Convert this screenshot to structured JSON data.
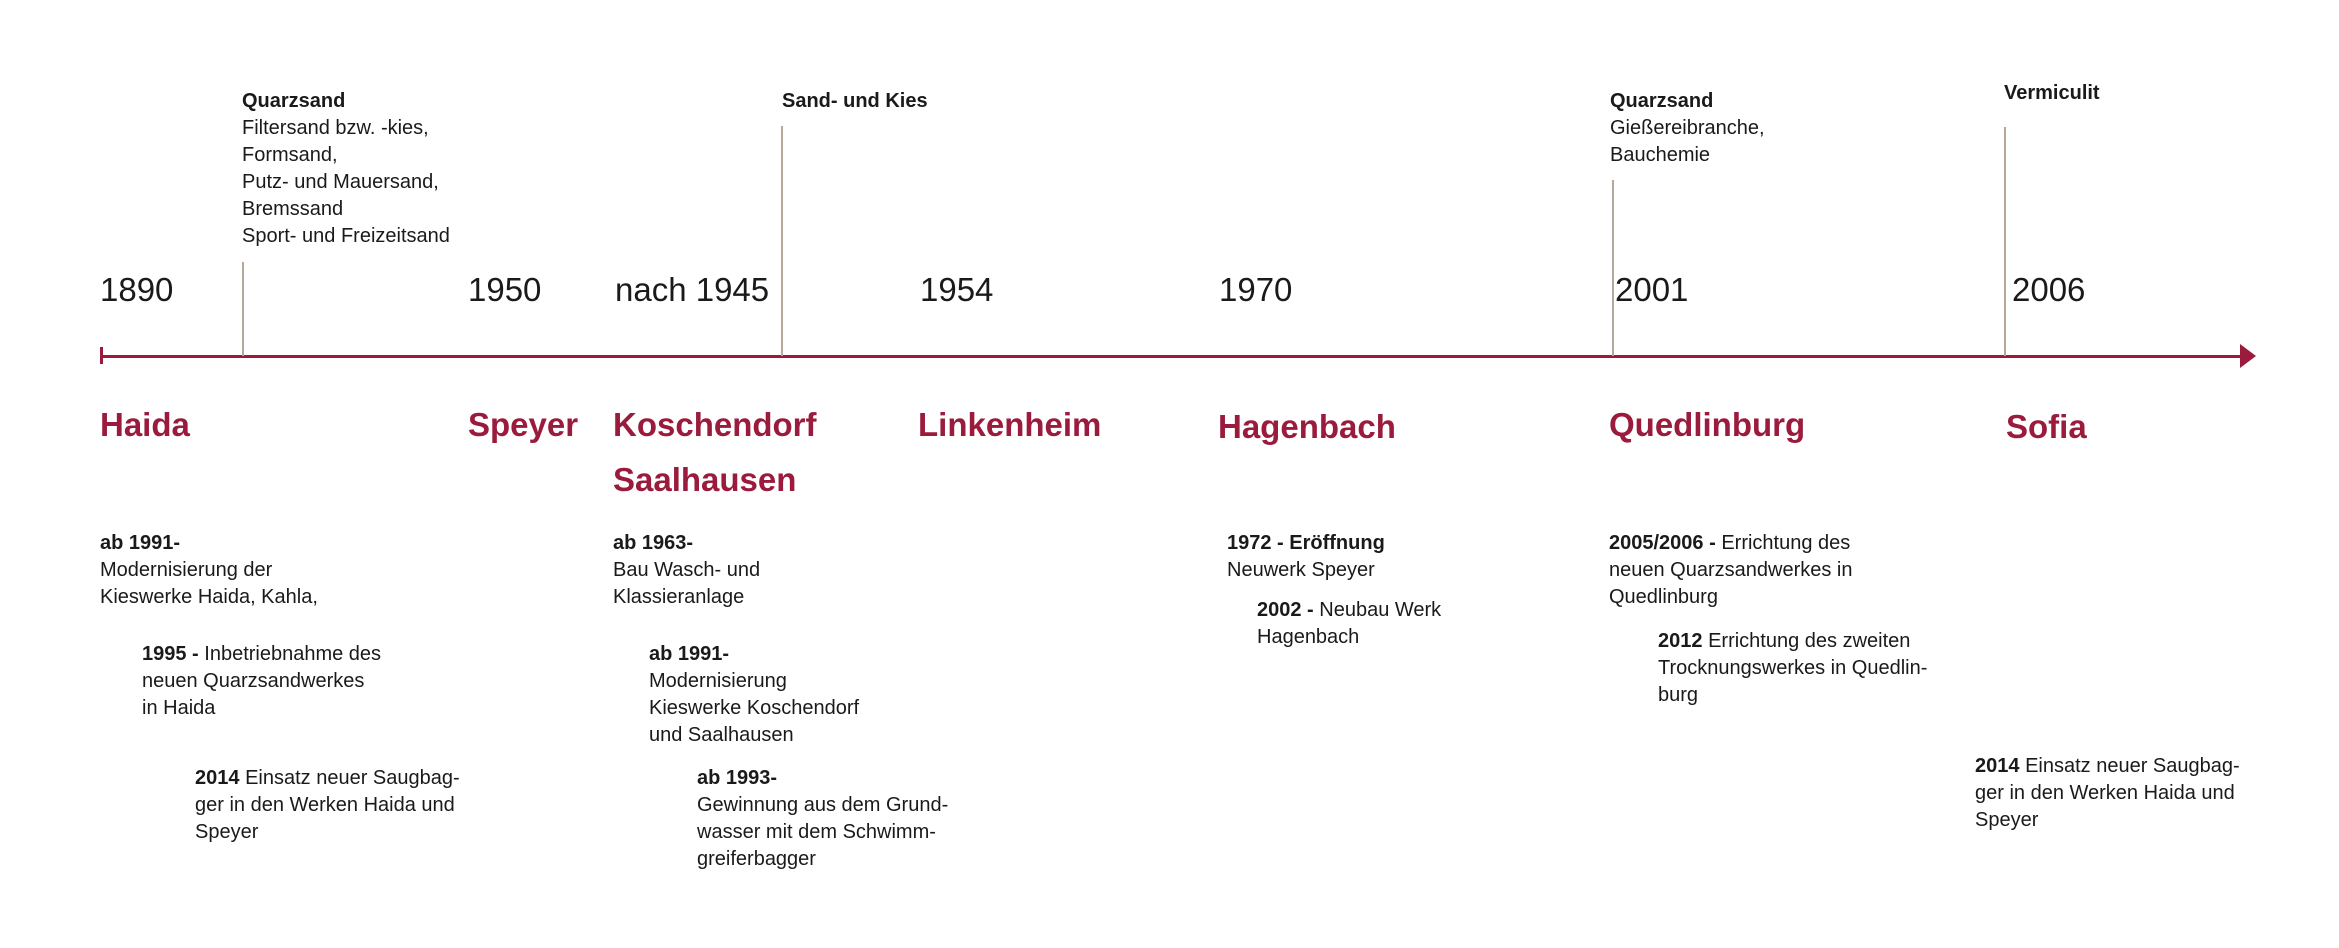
{
  "timeline": {
    "years": [
      "1890",
      "1950",
      "nach 1945",
      "1954",
      "1970",
      "2001",
      "2006"
    ],
    "places": [
      "Haida",
      "Speyer",
      "Koschendorf",
      "Saalhausen",
      "Linkenheim",
      "Hagenbach",
      "Quedlinburg",
      "Sofia"
    ],
    "materials": [
      {
        "title": "Quarzsand",
        "lines": [
          "Filtersand bzw. -kies,",
          "Formsand,",
          "Putz- und Mauersand,",
          "Bremssand",
          "Sport- und Freizeitsand"
        ]
      },
      {
        "title": "Sand- und Kies",
        "lines": []
      },
      {
        "title": "Quarzsand",
        "lines": [
          "Gießereibranche,",
          "Bauchemie"
        ]
      },
      {
        "title": "Vermiculit",
        "lines": []
      }
    ],
    "events": [
      {
        "bold": "ab 1991-",
        "text": [
          "Modernisierung der",
          "Kieswerke Haida, Kahla,"
        ]
      },
      {
        "bold": "1995 - ",
        "text": [
          "Inbetriebnahme des",
          "neuen Quarzsandwerkes",
          "in Haida"
        ]
      },
      {
        "bold": "2014 ",
        "text": [
          "Einsatz neuer Saugbag-",
          "ger in den Werken Haida und",
          "Speyer"
        ]
      },
      {
        "bold": "ab 1963-",
        "text": [
          "Bau Wasch- und",
          "Klassieranlage"
        ]
      },
      {
        "bold": "ab 1991-",
        "text": [
          "Modernisierung",
          "Kieswerke Koschendorf",
          "und Saalhausen"
        ]
      },
      {
        "bold": "ab 1993-",
        "text": [
          "Gewinnung aus dem Grund-",
          "wasser mit dem Schwimm-",
          "greiferbagger"
        ]
      },
      {
        "bold": "1972 - Eröffnung",
        "text": [
          "Neuwerk Speyer"
        ]
      },
      {
        "bold": "2002 - ",
        "text": [
          "Neubau Werk",
          "Hagenbach"
        ]
      },
      {
        "bold": "2005/2006 - ",
        "text": [
          "Errichtung des",
          "neuen Quarzsandwerkes in",
          "Quedlinburg"
        ]
      },
      {
        "bold": "2012 ",
        "text": [
          "Errichtung des zweiten",
          "Trocknungswerkes in Quedlin-",
          "burg"
        ]
      },
      {
        "bold": "2014 ",
        "text": [
          "Einsatz neuer Saugbag-",
          "ger in den Werken Haida und",
          "Speyer"
        ]
      }
    ]
  },
  "colors": {
    "accent": "#9a1b3c",
    "connector": "#b8a89a",
    "text": "#1a1a1a"
  }
}
